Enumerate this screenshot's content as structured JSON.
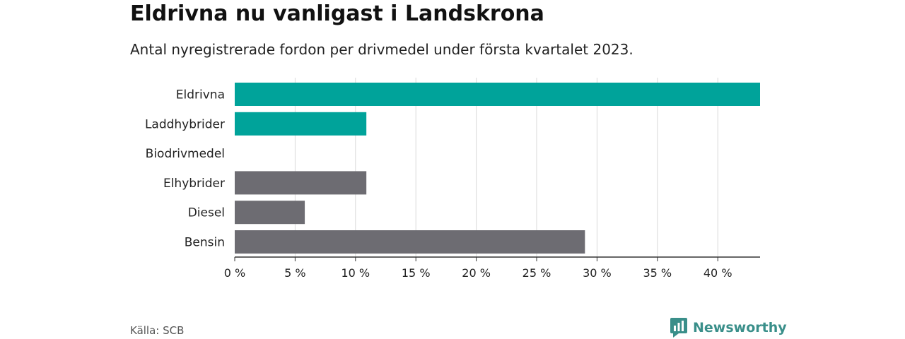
{
  "header": {
    "title": "Eldrivna nu vanligast i Landskrona",
    "subtitle": "Antal nyregistrerade fordon per drivmedel under första kvartalet 2023."
  },
  "chart_data": {
    "type": "bar",
    "orientation": "horizontal",
    "categories": [
      "Eldrivna",
      "Laddhybrider",
      "Biodrivmedel",
      "Elhybrider",
      "Diesel",
      "Bensin"
    ],
    "values": [
      43.5,
      10.9,
      0,
      10.9,
      5.8,
      29.0
    ],
    "colors": [
      "#00a39a",
      "#00a39a",
      "#00a39a",
      "#6d6c72",
      "#6d6c72",
      "#6d6c72"
    ],
    "xticks": [
      0,
      5,
      10,
      15,
      20,
      25,
      30,
      35,
      40
    ],
    "xtick_labels": [
      "0 %",
      "5 %",
      "10 %",
      "15 %",
      "20 %",
      "25 %",
      "30 %",
      "35 %",
      "40 %"
    ],
    "xlim": [
      0,
      43.5
    ],
    "grid": "vertical",
    "legend": "none"
  },
  "footer": {
    "source": "Källa: SCB",
    "brand": "Newsworthy",
    "brand_icon": "bar-chart-logo-icon",
    "brand_color": "#3a8f8a"
  }
}
